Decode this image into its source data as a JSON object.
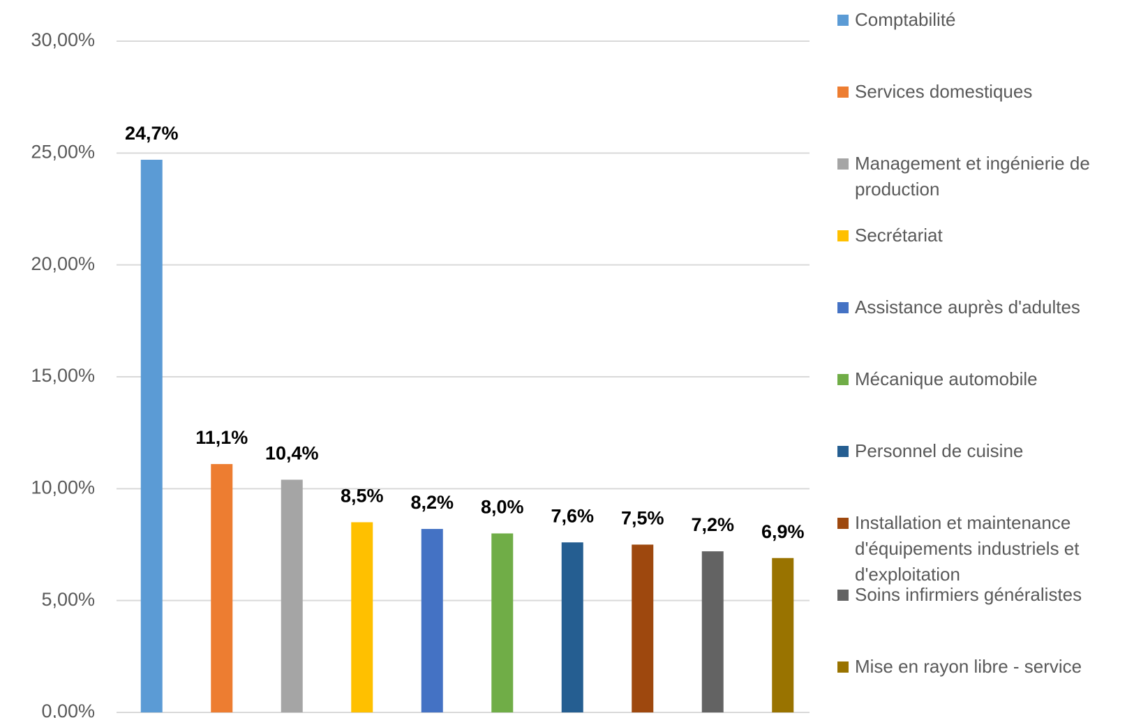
{
  "chart_data": {
    "type": "bar",
    "series": [
      {
        "name": "Comptabilité",
        "color": "#5b9bd5",
        "values": [
          24.7
        ],
        "value_labels": [
          "24,7%"
        ]
      },
      {
        "name": "Services domestiques",
        "color": "#ed7d31",
        "values": [
          11.1
        ],
        "value_labels": [
          "11,1%"
        ]
      },
      {
        "name": "Management et ingénierie de production",
        "color": "#a5a5a5",
        "values": [
          10.4
        ],
        "value_labels": [
          "10,4%"
        ]
      },
      {
        "name": "Secrétariat",
        "color": "#ffc000",
        "values": [
          8.5
        ],
        "value_labels": [
          "8,5%"
        ]
      },
      {
        "name": "Assistance auprès d'adultes",
        "color": "#4472c4",
        "values": [
          8.2
        ],
        "value_labels": [
          "8,2%"
        ]
      },
      {
        "name": "Mécanique automobile",
        "color": "#70ad47",
        "values": [
          8.0
        ],
        "value_labels": [
          "8,0%"
        ]
      },
      {
        "name": "Personnel de cuisine",
        "color": "#255e91",
        "values": [
          7.6
        ],
        "value_labels": [
          "7,6%"
        ]
      },
      {
        "name": "Installation et maintenance d'équipements industriels et d'exploitation",
        "color": "#9e480e",
        "values": [
          7.5
        ],
        "value_labels": [
          "7,5%"
        ]
      },
      {
        "name": "Soins infirmiers généralistes",
        "color": "#636363",
        "values": [
          7.2
        ],
        "value_labels": [
          "7,2%"
        ]
      },
      {
        "name": "Mise en rayon libre - service",
        "color": "#997300",
        "values": [
          6.9
        ],
        "value_labels": [
          "6,9%"
        ]
      }
    ],
    "ylim": [
      0,
      30
    ],
    "yticks": [
      {
        "value": 0,
        "label": "0,00%"
      },
      {
        "value": 5,
        "label": "5,00%"
      },
      {
        "value": 10,
        "label": "10,00%"
      },
      {
        "value": 15,
        "label": "15,00%"
      },
      {
        "value": 20,
        "label": "20,00%"
      },
      {
        "value": 25,
        "label": "25,00%"
      },
      {
        "value": 30,
        "label": "30,00%"
      }
    ],
    "grid": true,
    "legend": "right"
  }
}
